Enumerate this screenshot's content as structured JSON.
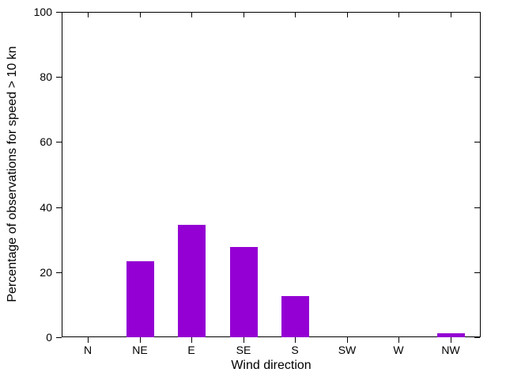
{
  "chart_data": {
    "type": "bar",
    "categories": [
      "N",
      "NE",
      "E",
      "SE",
      "S",
      "SW",
      "W",
      "NW"
    ],
    "values": [
      0,
      23.4,
      34.6,
      27.8,
      12.7,
      0,
      0,
      1.1
    ],
    "xlabel": "Wind direction",
    "ylabel": "Percentage of observations for speed > 10 kn",
    "ylim": [
      0,
      100
    ],
    "yticks": [
      0,
      20,
      40,
      60,
      80,
      100
    ],
    "bar_color": "#9400D3",
    "axis_color": "#000000",
    "background_color": "#ffffff",
    "grid": false,
    "legend": "none",
    "tick_style": "outward bottom-left, inward mirrored top-right"
  }
}
